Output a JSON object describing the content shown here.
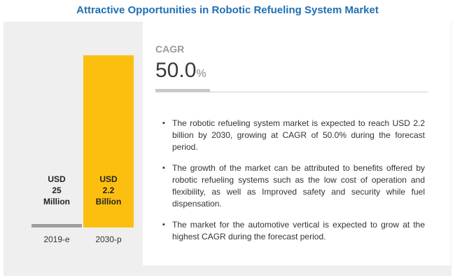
{
  "title": "Attractive Opportunities in Robotic Refueling System Market",
  "cagr": {
    "label": "CAGR",
    "value": "50.0",
    "unit": "%"
  },
  "bullets": [
    "The robotic refueling system market is expected to reach USD 2.2 billion by 2030, growing at CAGR of 50.0% during the forecast period.",
    "The growth of the market can be attributed  to benefits offered by robotic refueling systems such as the low cost of operation and flexibility, as well as Improved safety and security while fuel dispensation.",
    "The market for the automotive vertical is expected to grow at the highest CAGR during the forecast period."
  ],
  "chart_data": {
    "type": "bar",
    "categories": [
      "2019-e",
      "2030-p"
    ],
    "values": [
      0.025,
      2.2
    ],
    "unit": "USD Billion",
    "ylim": [
      0,
      2.2
    ],
    "grid": false,
    "data_labels": [
      [
        "USD",
        "25",
        "Million"
      ],
      [
        "USD",
        "2.2",
        "Billion"
      ]
    ],
    "colors": [
      "#9e9e9e",
      "#fdbf0f"
    ]
  }
}
